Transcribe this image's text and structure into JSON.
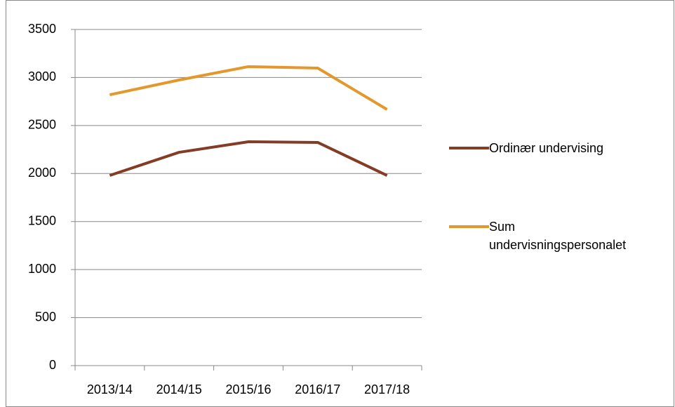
{
  "chart_data": {
    "type": "line",
    "categories": [
      "2013/14",
      "2014/15",
      "2015/16",
      "2016/17",
      "2017/18"
    ],
    "series": [
      {
        "name": "Ordinær undervising",
        "color": "#843c26",
        "values": [
          1980,
          2221,
          2331,
          2324,
          1980
        ]
      },
      {
        "name": "Sum undervisningspersonalet",
        "color": "#e3982e",
        "values": [
          2820,
          2974,
          3113,
          3098,
          2667
        ]
      }
    ],
    "ylim": [
      0,
      3500
    ],
    "yticks": [
      0,
      500,
      1000,
      1500,
      2000,
      2500,
      3000,
      3500
    ],
    "grid": true,
    "legend": "right"
  }
}
